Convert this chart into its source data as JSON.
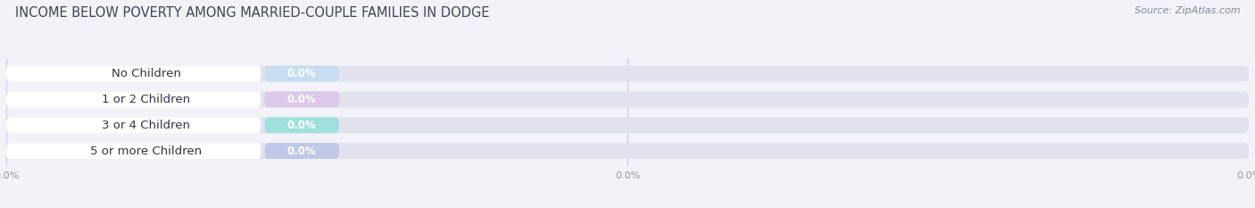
{
  "title": "INCOME BELOW POVERTY AMONG MARRIED-COUPLE FAMILIES IN DODGE",
  "source": "Source: ZipAtlas.com",
  "categories": [
    "No Children",
    "1 or 2 Children",
    "3 or 4 Children",
    "5 or more Children"
  ],
  "values": [
    0.0,
    0.0,
    0.0,
    0.0
  ],
  "bar_colors": [
    "#a8c4e0",
    "#c9afd4",
    "#6ecfcc",
    "#a8afd8"
  ],
  "label_bg_colors": [
    "#c8ddf0",
    "#dcc8e8",
    "#a0e0dc",
    "#c0c8e8"
  ],
  "background_color": "#f2f2f8",
  "bar_bg_color": "#e2e2ee",
  "title_color": "#444455",
  "source_color": "#888899",
  "label_text_color": "#333344",
  "value_text_color": "#ffffff",
  "grid_color": "#ccccdd",
  "xtick_color": "#999999",
  "title_fontsize": 10.5,
  "source_fontsize": 8,
  "label_fontsize": 9.5,
  "value_fontsize": 8.5,
  "xtick_fontsize": 8
}
